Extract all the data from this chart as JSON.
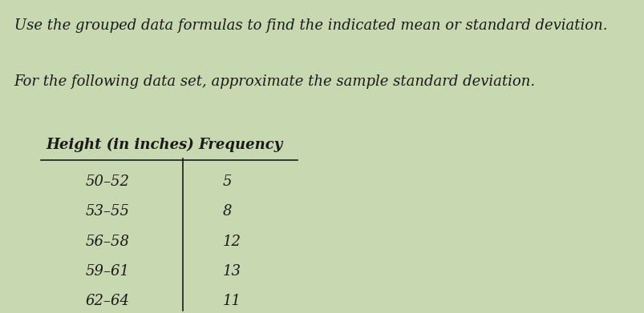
{
  "title_line1": "Use the grouped data formulas to find the indicated mean or standard deviation.",
  "title_line2": "For the following data set, approximate the sample standard deviation.",
  "col1_header": "Height (in inches)",
  "col2_header": "Frequency",
  "rows": [
    [
      "50–52",
      "5"
    ],
    [
      "53–55",
      "8"
    ],
    [
      "56–58",
      "12"
    ],
    [
      "59–61",
      "13"
    ],
    [
      "62–64",
      "11"
    ]
  ],
  "bg_color": "#c8d8b0",
  "text_color": "#1a1a1a",
  "font_size_title": 13,
  "font_size_table": 13,
  "fig_width": 8.04,
  "fig_height": 3.91
}
